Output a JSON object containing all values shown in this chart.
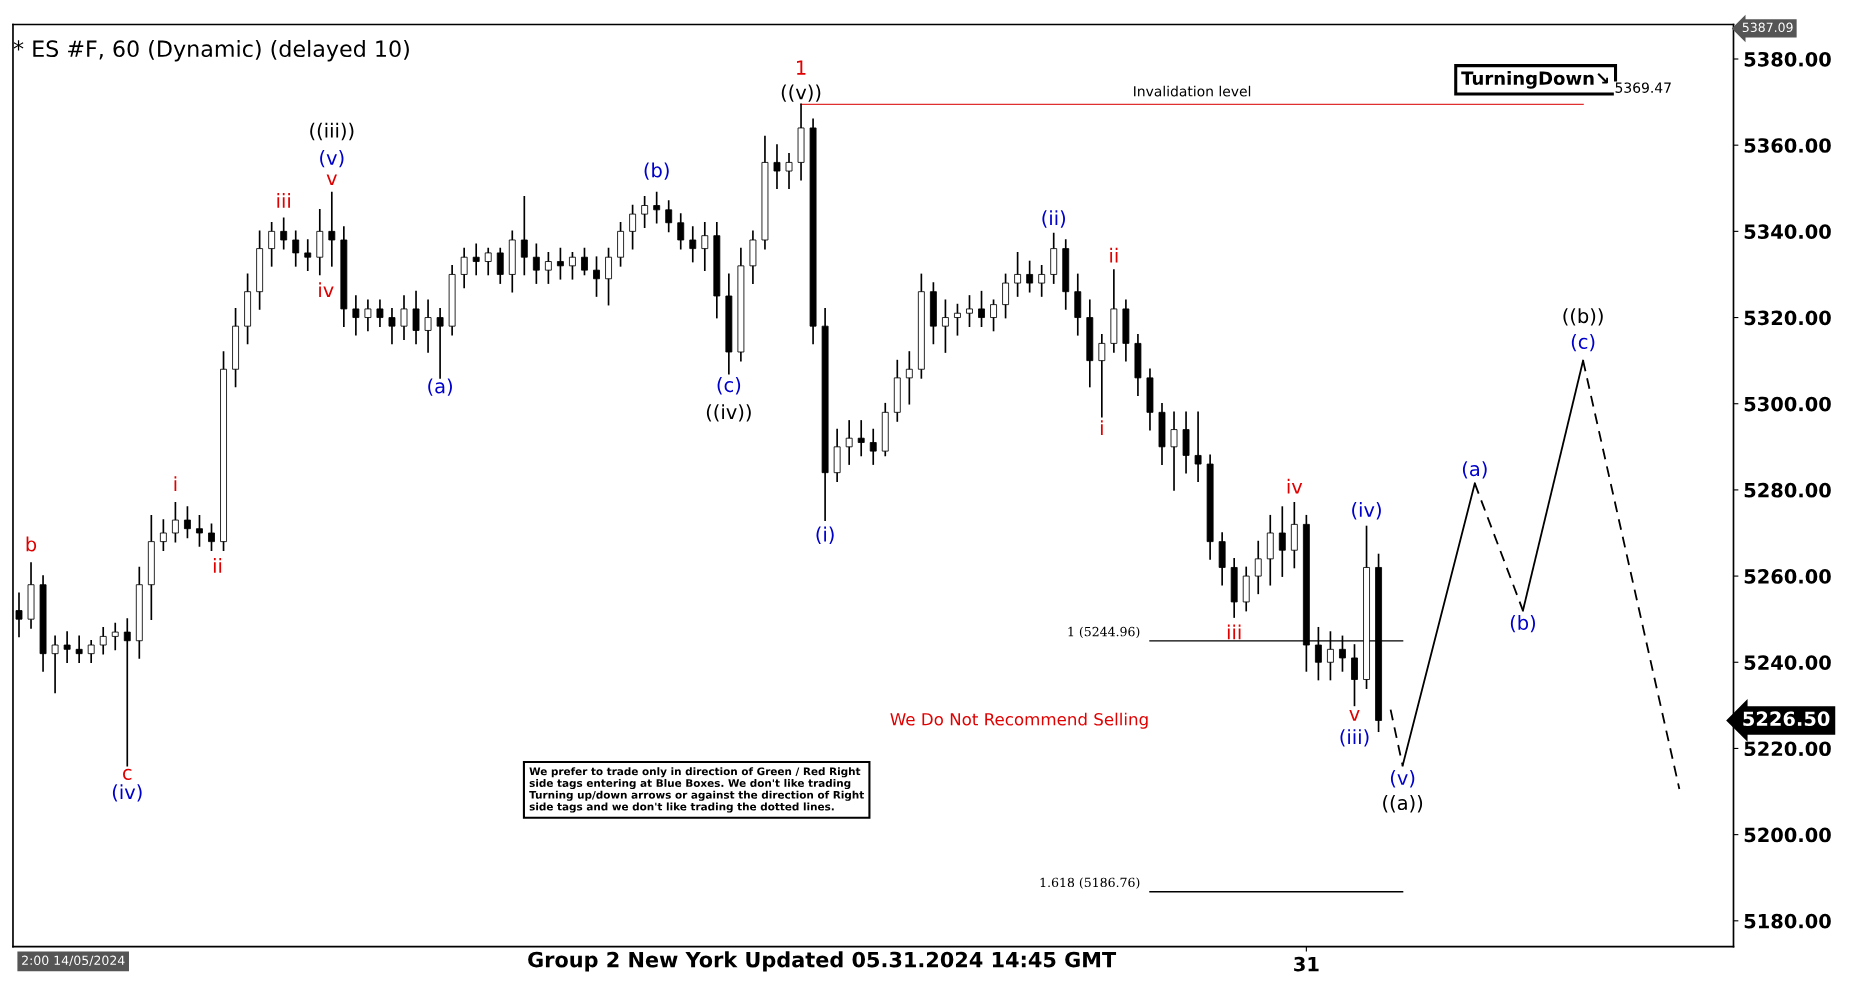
{
  "chart_data": {
    "type": "candlestick",
    "title": "* ES #F, 60 (Dynamic) (delayed 10)",
    "categories": [
      null,
      null,
      null,
      null,
      null,
      null,
      null,
      null,
      null,
      null,
      null,
      null,
      null,
      null,
      null,
      null,
      null,
      null,
      null,
      null,
      null,
      null,
      null,
      null,
      null,
      null,
      null,
      null,
      null,
      null,
      null,
      null,
      null,
      null,
      null,
      null,
      null,
      null,
      null,
      null,
      null,
      null,
      null,
      null,
      null,
      null,
      null,
      null,
      null,
      null,
      null,
      null,
      null,
      null,
      null,
      null,
      null,
      null,
      null,
      null,
      null,
      null,
      null,
      null,
      null,
      null,
      null,
      null,
      null,
      null,
      null,
      null,
      null,
      null,
      null,
      null,
      null,
      null,
      null,
      null,
      null,
      null,
      null,
      null,
      null,
      null,
      null,
      null,
      null,
      null,
      null,
      null,
      null,
      null,
      null,
      null,
      null,
      null,
      null,
      null,
      null,
      null,
      null,
      null,
      null,
      null,
      null,
      "31",
      null,
      null,
      null,
      null,
      null,
      null,
      null,
      null,
      null,
      null,
      null,
      null,
      null,
      null,
      null,
      null,
      null,
      null,
      null,
      null,
      null,
      null,
      null,
      null,
      null,
      null,
      null,
      null,
      null,
      null,
      null,
      null,
      null,
      null,
      null
    ],
    "ohlc": [
      [
        5252,
        5256,
        5246,
        5250
      ],
      [
        5250,
        5263,
        5248,
        5258
      ],
      [
        5258,
        5260,
        5238,
        5242
      ],
      [
        5242,
        5246,
        5233,
        5244
      ],
      [
        5244,
        5247,
        5240,
        5243
      ],
      [
        5243,
        5246,
        5240,
        5242
      ],
      [
        5242,
        5245,
        5240,
        5244
      ],
      [
        5244,
        5248,
        5242,
        5246
      ],
      [
        5246,
        5249,
        5243,
        5247
      ],
      [
        5247,
        5250,
        5216,
        5245
      ],
      [
        5245,
        5262,
        5241,
        5258
      ],
      [
        5258,
        5274,
        5250,
        5268
      ],
      [
        5268,
        5273,
        5266,
        5270
      ],
      [
        5270,
        5277,
        5268,
        5273
      ],
      [
        5273,
        5276,
        5269,
        5271
      ],
      [
        5271,
        5274,
        5267,
        5270
      ],
      [
        5270,
        5272,
        5266,
        5268
      ],
      [
        5268,
        5312,
        5266,
        5308
      ],
      [
        5308,
        5322,
        5304,
        5318
      ],
      [
        5318,
        5330,
        5314,
        5326
      ],
      [
        5326,
        5340,
        5322,
        5336
      ],
      [
        5336,
        5342,
        5332,
        5340
      ],
      [
        5340,
        5343,
        5336,
        5338
      ],
      [
        5338,
        5340,
        5332,
        5335
      ],
      [
        5335,
        5338,
        5331,
        5334
      ],
      [
        5334,
        5345,
        5330,
        5340
      ],
      [
        5340,
        5349,
        5332,
        5338
      ],
      [
        5338,
        5341,
        5318,
        5322
      ],
      [
        5322,
        5325,
        5316,
        5320
      ],
      [
        5320,
        5324,
        5317,
        5322
      ],
      [
        5322,
        5324,
        5318,
        5320
      ],
      [
        5320,
        5322,
        5314,
        5318
      ],
      [
        5318,
        5325,
        5315,
        5322
      ],
      [
        5322,
        5326,
        5314,
        5317
      ],
      [
        5317,
        5324,
        5312,
        5320
      ],
      [
        5320,
        5322,
        5306,
        5318
      ],
      [
        5318,
        5332,
        5316,
        5330
      ],
      [
        5330,
        5336,
        5327,
        5334
      ],
      [
        5334,
        5337,
        5330,
        5333
      ],
      [
        5333,
        5336,
        5330,
        5335
      ],
      [
        5335,
        5336,
        5328,
        5330
      ],
      [
        5330,
        5340,
        5326,
        5338
      ],
      [
        5338,
        5348,
        5330,
        5334
      ],
      [
        5334,
        5337,
        5328,
        5331
      ],
      [
        5331,
        5335,
        5328,
        5333
      ],
      [
        5333,
        5336,
        5329,
        5332
      ],
      [
        5332,
        5335,
        5329,
        5334
      ],
      [
        5334,
        5336,
        5330,
        5331
      ],
      [
        5331,
        5334,
        5325,
        5329
      ],
      [
        5329,
        5336,
        5323,
        5334
      ],
      [
        5334,
        5342,
        5332,
        5340
      ],
      [
        5340,
        5346,
        5336,
        5344
      ],
      [
        5344,
        5348,
        5341,
        5346
      ],
      [
        5346,
        5349,
        5342,
        5345
      ],
      [
        5345,
        5347,
        5340,
        5342
      ],
      [
        5342,
        5344,
        5336,
        5338
      ],
      [
        5338,
        5341,
        5333,
        5336
      ],
      [
        5336,
        5342,
        5331,
        5339
      ],
      [
        5339,
        5342,
        5320,
        5325
      ],
      [
        5325,
        5330,
        5307,
        5312
      ],
      [
        5312,
        5336,
        5310,
        5332
      ],
      [
        5332,
        5340,
        5328,
        5338
      ],
      [
        5338,
        5362,
        5336,
        5356
      ],
      [
        5356,
        5360,
        5350,
        5354
      ],
      [
        5354,
        5358,
        5350,
        5356
      ],
      [
        5356,
        5369.5,
        5352,
        5364
      ],
      [
        5364,
        5366,
        5314,
        5318
      ],
      [
        5318,
        5322,
        5273,
        5284
      ],
      [
        5284,
        5294,
        5282,
        5290
      ],
      [
        5290,
        5296,
        5286,
        5292
      ],
      [
        5292,
        5296,
        5288,
        5291
      ],
      [
        5291,
        5294,
        5286,
        5289
      ],
      [
        5289,
        5300,
        5288,
        5298
      ],
      [
        5298,
        5310,
        5296,
        5306
      ],
      [
        5306,
        5312,
        5300,
        5308
      ],
      [
        5308,
        5330,
        5306,
        5326
      ],
      [
        5326,
        5328,
        5314,
        5318
      ],
      [
        5318,
        5324,
        5312,
        5320
      ],
      [
        5320,
        5323,
        5316,
        5321
      ],
      [
        5321,
        5325,
        5318,
        5322
      ],
      [
        5322,
        5326,
        5318,
        5320
      ],
      [
        5320,
        5324,
        5317,
        5323
      ],
      [
        5323,
        5330,
        5320,
        5328
      ],
      [
        5328,
        5335,
        5325,
        5330
      ],
      [
        5330,
        5333,
        5326,
        5328
      ],
      [
        5328,
        5332,
        5325,
        5330
      ],
      [
        5330,
        5339.5,
        5328,
        5336
      ],
      [
        5336,
        5338,
        5322,
        5326
      ],
      [
        5326,
        5330,
        5316,
        5320
      ],
      [
        5320,
        5324,
        5304,
        5310
      ],
      [
        5310,
        5316,
        5297,
        5314
      ],
      [
        5314,
        5331,
        5312,
        5322
      ],
      [
        5322,
        5324,
        5310,
        5314
      ],
      [
        5314,
        5316,
        5302,
        5306
      ],
      [
        5306,
        5308,
        5294,
        5298
      ],
      [
        5298,
        5300,
        5286,
        5290
      ],
      [
        5290,
        5298,
        5280,
        5294
      ],
      [
        5294,
        5298,
        5284,
        5288
      ],
      [
        5288,
        5298,
        5282,
        5286
      ],
      [
        5286,
        5288,
        5264,
        5268
      ],
      [
        5268,
        5270,
        5258,
        5262
      ],
      [
        5262,
        5264,
        5250.5,
        5254
      ],
      [
        5254,
        5262,
        5252,
        5260
      ],
      [
        5260,
        5268,
        5256,
        5264
      ],
      [
        5264,
        5274,
        5258,
        5270
      ],
      [
        5270,
        5276,
        5260,
        5266
      ],
      [
        5266,
        5277,
        5262,
        5272
      ],
      [
        5272,
        5274,
        5238,
        5244
      ],
      [
        5244,
        5248,
        5236,
        5240
      ],
      [
        5240,
        5247,
        5236,
        5243
      ],
      [
        5243,
        5246,
        5238,
        5241
      ],
      [
        5241,
        5244,
        5230,
        5236
      ],
      [
        5236,
        5271.5,
        5234,
        5262
      ],
      [
        5262,
        5265,
        5224,
        5226.5
      ],
      null,
      null,
      null,
      null,
      null,
      null,
      null,
      null,
      null,
      null,
      null,
      null,
      null,
      null,
      null,
      null,
      null,
      null,
      null,
      null,
      null,
      null,
      null,
      null,
      null,
      null,
      null,
      null,
      null
    ],
    "color": "#000000",
    "series": [
      {
        "type": "line",
        "color": "#000000",
        "line_style": "dashed",
        "values": [
          null,
          null,
          null,
          null,
          null,
          null,
          null,
          null,
          null,
          null,
          null,
          null,
          null,
          null,
          null,
          null,
          null,
          null,
          null,
          null,
          null,
          null,
          null,
          null,
          null,
          null,
          null,
          null,
          null,
          null,
          null,
          null,
          null,
          null,
          null,
          null,
          null,
          null,
          null,
          null,
          null,
          null,
          null,
          null,
          null,
          null,
          null,
          null,
          null,
          null,
          null,
          null,
          null,
          null,
          null,
          null,
          null,
          null,
          null,
          null,
          null,
          null,
          null,
          null,
          null,
          null,
          null,
          null,
          null,
          null,
          null,
          null,
          null,
          null,
          null,
          null,
          null,
          null,
          null,
          null,
          null,
          null,
          null,
          null,
          null,
          null,
          null,
          null,
          null,
          null,
          null,
          null,
          null,
          null,
          null,
          null,
          null,
          null,
          null,
          null,
          null,
          null,
          null,
          null,
          null,
          null,
          null,
          null,
          null,
          null,
          null,
          null,
          null,
          null,
          5229,
          5216,
          null,
          null,
          null,
          null,
          null,
          null,
          null,
          null,
          null,
          null,
          null,
          null,
          null,
          null,
          null,
          null,
          null,
          null,
          null,
          null,
          null,
          null,
          null,
          null,
          null,
          null,
          null
        ]
      },
      {
        "type": "line",
        "color": "#000000",
        "line_style": "solid",
        "values": [
          null,
          null,
          null,
          null,
          null,
          null,
          null,
          null,
          null,
          null,
          null,
          null,
          null,
          null,
          null,
          null,
          null,
          null,
          null,
          null,
          null,
          null,
          null,
          null,
          null,
          null,
          null,
          null,
          null,
          null,
          null,
          null,
          null,
          null,
          null,
          null,
          null,
          null,
          null,
          null,
          null,
          null,
          null,
          null,
          null,
          null,
          null,
          null,
          null,
          null,
          null,
          null,
          null,
          null,
          null,
          null,
          null,
          null,
          null,
          null,
          null,
          null,
          null,
          null,
          null,
          null,
          null,
          null,
          null,
          null,
          null,
          null,
          null,
          null,
          null,
          null,
          null,
          null,
          null,
          null,
          null,
          null,
          null,
          null,
          null,
          null,
          null,
          null,
          null,
          null,
          null,
          null,
          null,
          null,
          null,
          null,
          null,
          null,
          null,
          null,
          null,
          null,
          null,
          null,
          null,
          null,
          null,
          null,
          null,
          null,
          null,
          null,
          null,
          null,
          null,
          5216,
          null,
          null,
          null,
          null,
          null,
          5281.5,
          null,
          null,
          null,
          null,
          null,
          null,
          null,
          null,
          null,
          null,
          null,
          null,
          null,
          null,
          null,
          null,
          null,
          null,
          null,
          null,
          null
        ]
      },
      {
        "type": "line",
        "color": "#000000",
        "line_style": "dashed",
        "values": [
          null,
          null,
          null,
          null,
          null,
          null,
          null,
          null,
          null,
          null,
          null,
          null,
          null,
          null,
          null,
          null,
          null,
          null,
          null,
          null,
          null,
          null,
          null,
          null,
          null,
          null,
          null,
          null,
          null,
          null,
          null,
          null,
          null,
          null,
          null,
          null,
          null,
          null,
          null,
          null,
          null,
          null,
          null,
          null,
          null,
          null,
          null,
          null,
          null,
          null,
          null,
          null,
          null,
          null,
          null,
          null,
          null,
          null,
          null,
          null,
          null,
          null,
          null,
          null,
          null,
          null,
          null,
          null,
          null,
          null,
          null,
          null,
          null,
          null,
          null,
          null,
          null,
          null,
          null,
          null,
          null,
          null,
          null,
          null,
          null,
          null,
          null,
          null,
          null,
          null,
          null,
          null,
          null,
          null,
          null,
          null,
          null,
          null,
          null,
          null,
          null,
          null,
          null,
          null,
          null,
          null,
          null,
          null,
          null,
          null,
          null,
          null,
          null,
          null,
          null,
          null,
          null,
          null,
          null,
          null,
          null,
          5281.5,
          null,
          null,
          null,
          5252,
          null,
          null,
          null,
          null,
          null,
          null,
          null,
          null,
          null,
          null,
          null,
          null,
          null,
          null,
          null,
          null,
          null
        ]
      },
      {
        "type": "line",
        "color": "#000000",
        "line_style": "solid",
        "values": [
          null,
          null,
          null,
          null,
          null,
          null,
          null,
          null,
          null,
          null,
          null,
          null,
          null,
          null,
          null,
          null,
          null,
          null,
          null,
          null,
          null,
          null,
          null,
          null,
          null,
          null,
          null,
          null,
          null,
          null,
          null,
          null,
          null,
          null,
          null,
          null,
          null,
          null,
          null,
          null,
          null,
          null,
          null,
          null,
          null,
          null,
          null,
          null,
          null,
          null,
          null,
          null,
          null,
          null,
          null,
          null,
          null,
          null,
          null,
          null,
          null,
          null,
          null,
          null,
          null,
          null,
          null,
          null,
          null,
          null,
          null,
          null,
          null,
          null,
          null,
          null,
          null,
          null,
          null,
          null,
          null,
          null,
          null,
          null,
          null,
          null,
          null,
          null,
          null,
          null,
          null,
          null,
          null,
          null,
          null,
          null,
          null,
          null,
          null,
          null,
          null,
          null,
          null,
          null,
          null,
          null,
          null,
          null,
          null,
          null,
          null,
          null,
          null,
          null,
          null,
          null,
          null,
          null,
          null,
          null,
          null,
          null,
          null,
          null,
          null,
          5252,
          null,
          null,
          null,
          null,
          5310,
          null,
          null,
          null,
          null,
          null,
          null,
          null,
          null,
          null,
          null,
          null,
          null
        ]
      },
      {
        "type": "line",
        "color": "#000000",
        "line_style": "dashed",
        "values": [
          null,
          null,
          null,
          null,
          null,
          null,
          null,
          null,
          null,
          null,
          null,
          null,
          null,
          null,
          null,
          null,
          null,
          null,
          null,
          null,
          null,
          null,
          null,
          null,
          null,
          null,
          null,
          null,
          null,
          null,
          null,
          null,
          null,
          null,
          null,
          null,
          null,
          null,
          null,
          null,
          null,
          null,
          null,
          null,
          null,
          null,
          null,
          null,
          null,
          null,
          null,
          null,
          null,
          null,
          null,
          null,
          null,
          null,
          null,
          null,
          null,
          null,
          null,
          null,
          null,
          null,
          null,
          null,
          null,
          null,
          null,
          null,
          null,
          null,
          null,
          null,
          null,
          null,
          null,
          null,
          null,
          null,
          null,
          null,
          null,
          null,
          null,
          null,
          null,
          null,
          null,
          null,
          null,
          null,
          null,
          null,
          null,
          null,
          null,
          null,
          null,
          null,
          null,
          null,
          null,
          null,
          null,
          null,
          null,
          null,
          null,
          null,
          null,
          null,
          null,
          null,
          null,
          null,
          null,
          null,
          null,
          null,
          null,
          null,
          null,
          null,
          null,
          null,
          null,
          null,
          5310,
          null,
          null,
          null,
          null,
          null,
          null,
          null,
          5210.6,
          null,
          null,
          null,
          null
        ]
      },
      {
        "type": "line",
        "name": "Invalidation level",
        "color": "#e03030",
        "line_style": "solid",
        "values": [
          null,
          null,
          null,
          null,
          null,
          null,
          null,
          null,
          null,
          null,
          null,
          null,
          null,
          null,
          null,
          null,
          null,
          null,
          null,
          null,
          null,
          null,
          null,
          null,
          null,
          null,
          null,
          null,
          null,
          null,
          null,
          null,
          null,
          null,
          null,
          null,
          null,
          null,
          null,
          null,
          null,
          null,
          null,
          null,
          null,
          null,
          null,
          null,
          null,
          null,
          null,
          null,
          null,
          null,
          null,
          null,
          null,
          null,
          null,
          null,
          null,
          null,
          null,
          null,
          null,
          5369.47,
          null,
          null,
          null,
          null,
          null,
          null,
          null,
          null,
          null,
          null,
          null,
          null,
          null,
          null,
          null,
          null,
          null,
          null,
          null,
          null,
          null,
          null,
          null,
          null,
          null,
          null,
          null,
          null,
          null,
          null,
          null,
          null,
          null,
          null,
          null,
          null,
          null,
          null,
          null,
          null,
          null,
          null,
          null,
          null,
          null,
          null,
          null,
          null,
          null,
          null,
          null,
          null,
          null,
          null,
          null,
          null,
          null,
          null,
          null,
          null,
          null,
          null,
          null,
          null,
          5369.47,
          null,
          null,
          null,
          null,
          null,
          null,
          null,
          null,
          null,
          null,
          null,
          null
        ]
      },
      {
        "type": "line",
        "name": "1 (5244.96)",
        "color": "#000000",
        "line_style": "solid",
        "values": [
          null,
          null,
          null,
          null,
          null,
          null,
          null,
          null,
          null,
          null,
          null,
          null,
          null,
          null,
          null,
          null,
          null,
          null,
          null,
          null,
          null,
          null,
          null,
          null,
          null,
          null,
          null,
          null,
          null,
          null,
          null,
          null,
          null,
          null,
          null,
          null,
          null,
          null,
          null,
          null,
          null,
          null,
          null,
          null,
          null,
          null,
          null,
          null,
          null,
          null,
          null,
          null,
          null,
          null,
          null,
          null,
          null,
          null,
          null,
          null,
          null,
          null,
          null,
          null,
          null,
          null,
          null,
          null,
          null,
          null,
          null,
          null,
          null,
          null,
          null,
          null,
          null,
          null,
          null,
          null,
          null,
          null,
          null,
          null,
          null,
          null,
          null,
          null,
          null,
          null,
          null,
          null,
          null,
          null,
          5244.96,
          null,
          null,
          null,
          null,
          null,
          null,
          null,
          null,
          null,
          null,
          null,
          null,
          null,
          null,
          null,
          null,
          null,
          null,
          null,
          null,
          5244.96,
          null,
          null,
          null,
          null,
          null,
          null,
          null,
          null,
          null,
          null,
          null,
          null,
          null,
          null,
          null,
          null,
          null,
          null,
          null,
          null,
          null,
          null,
          null,
          null,
          null,
          null,
          null
        ]
      },
      {
        "type": "line",
        "name": "1.618 (5186.76)",
        "color": "#000000",
        "line_style": "solid",
        "values": [
          null,
          null,
          null,
          null,
          null,
          null,
          null,
          null,
          null,
          null,
          null,
          null,
          null,
          null,
          null,
          null,
          null,
          null,
          null,
          null,
          null,
          null,
          null,
          null,
          null,
          null,
          null,
          null,
          null,
          null,
          null,
          null,
          null,
          null,
          null,
          null,
          null,
          null,
          null,
          null,
          null,
          null,
          null,
          null,
          null,
          null,
          null,
          null,
          null,
          null,
          null,
          null,
          null,
          null,
          null,
          null,
          null,
          null,
          null,
          null,
          null,
          null,
          null,
          null,
          null,
          null,
          null,
          null,
          null,
          null,
          null,
          null,
          null,
          null,
          null,
          null,
          null,
          null,
          null,
          null,
          null,
          null,
          null,
          null,
          null,
          null,
          null,
          null,
          null,
          null,
          null,
          null,
          null,
          null,
          5186.76,
          null,
          null,
          null,
          null,
          null,
          null,
          null,
          null,
          null,
          null,
          null,
          null,
          null,
          null,
          null,
          null,
          null,
          null,
          null,
          null,
          5186.76,
          null,
          null,
          null,
          null,
          null,
          null,
          null,
          null,
          null,
          null,
          null,
          null,
          null,
          null,
          null,
          null,
          null,
          null,
          null,
          null,
          null,
          null,
          null,
          null,
          null,
          null,
          null
        ]
      }
    ],
    "ylim": [
      5174,
      5388
    ],
    "yticks": [
      {
        "value": 5180,
        "label": "5180.00"
      },
      {
        "value": 5200,
        "label": "5200.00"
      },
      {
        "value": 5220,
        "label": "5220.00"
      },
      {
        "value": 5240,
        "label": "5240.00"
      },
      {
        "value": 5260,
        "label": "5260.00"
      },
      {
        "value": 5280,
        "label": "5280.00"
      },
      {
        "value": 5300,
        "label": "5300.00"
      },
      {
        "value": 5320,
        "label": "5320.00"
      },
      {
        "value": 5340,
        "label": "5340.00"
      },
      {
        "value": 5360,
        "label": "5360.00"
      },
      {
        "value": 5380,
        "label": "5380.00"
      }
    ],
    "grid": false,
    "legend": false,
    "annotations": [
      "b",
      "c",
      "(iv)",
      "i",
      "ii",
      "iii",
      "iv",
      "v",
      "(v)",
      "((iii))",
      "(a)",
      "(b)",
      "(c)",
      "((iv))",
      "1",
      "((v))",
      "(i)",
      "(ii)",
      "i",
      "ii",
      "iii",
      "iv",
      "(iv)",
      "v",
      "(iii)",
      "(v)",
      "((a))",
      "(a)",
      "(b)",
      "(c)",
      "((b))",
      "5369.47",
      "5387.09",
      "5226.50",
      "TurningDown↘",
      "We Do Not Recommend Selling",
      "We prefer to trade only in direction of Green / Red Right\nside tags entering at Blue Boxes. We don't like trading\nTurning up/down arrows or against the direction of Right\nside tags and we don't like trading the dotted lines.",
      "Group 2 New York Updated 05.31.2024 14:45 GMT",
      "2:00 14/05/2024"
    ]
  }
}
